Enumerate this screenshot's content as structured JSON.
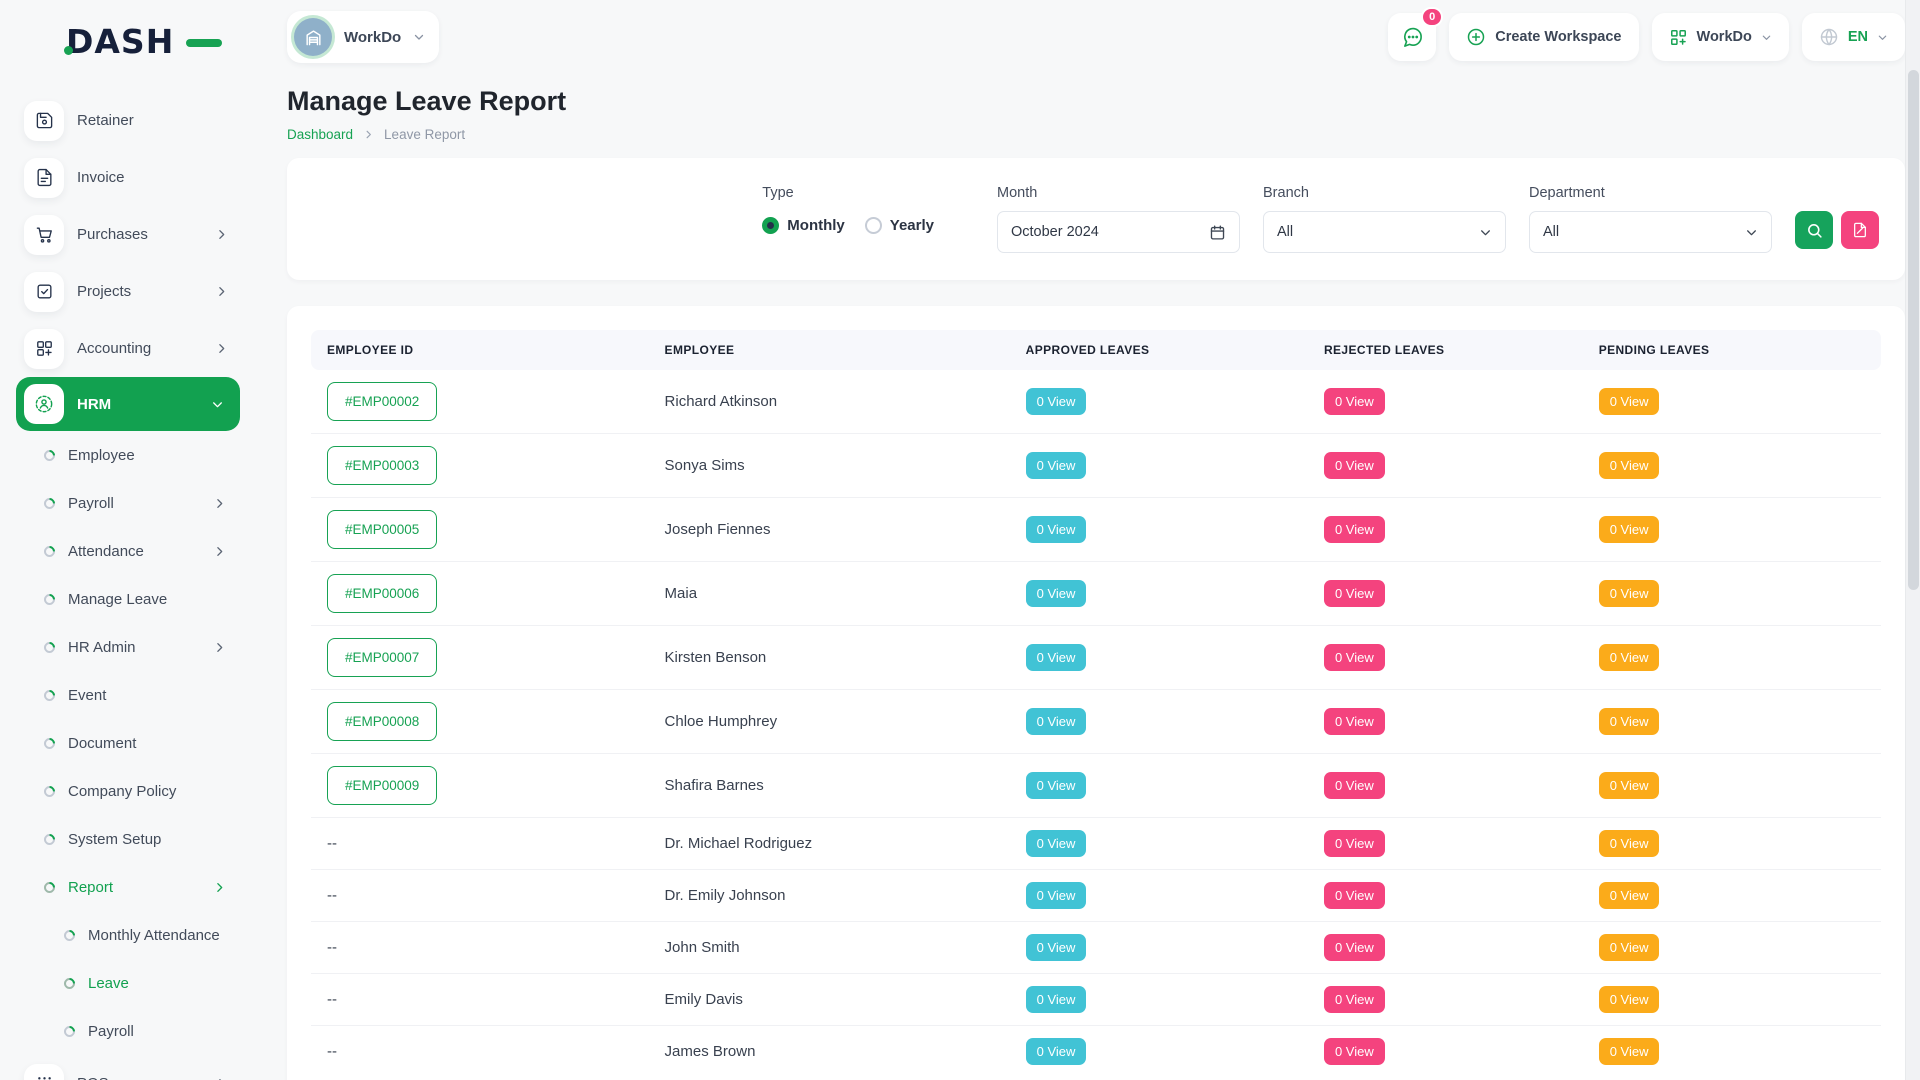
{
  "colors": {
    "accent_green": "#12a150",
    "badge_teal": "#41c3d5",
    "badge_pink": "#f4437e",
    "badge_orange": "#fbab1a",
    "brand_dark": "#16203a"
  },
  "brand": {
    "name": "DASH"
  },
  "topbar": {
    "workspace": {
      "label": "WorkDo"
    },
    "chat_badge": "0",
    "create_workspace_label": "Create Workspace",
    "app_menu_label": "WorkDo",
    "language_label": "EN"
  },
  "sidebar": {
    "items": [
      {
        "label": "Retainer",
        "icon": "retainer-icon",
        "chevron": false,
        "active": false
      },
      {
        "label": "Invoice",
        "icon": "invoice-icon",
        "chevron": false,
        "active": false
      },
      {
        "label": "Purchases",
        "icon": "purchases-icon",
        "chevron": true,
        "active": false
      },
      {
        "label": "Projects",
        "icon": "projects-icon",
        "chevron": true,
        "active": false
      },
      {
        "label": "Accounting",
        "icon": "accounting-icon",
        "chevron": true,
        "active": false
      },
      {
        "label": "HRM",
        "icon": "hrm-icon",
        "chevron": true,
        "active": true
      }
    ],
    "hrm_children": [
      {
        "label": "Employee",
        "chevron": false,
        "active": false
      },
      {
        "label": "Payroll",
        "chevron": true,
        "active": false
      },
      {
        "label": "Attendance",
        "chevron": true,
        "active": false
      },
      {
        "label": "Manage Leave",
        "chevron": false,
        "active": false
      },
      {
        "label": "HR Admin",
        "chevron": true,
        "active": false
      },
      {
        "label": "Event",
        "chevron": false,
        "active": false
      },
      {
        "label": "Document",
        "chevron": false,
        "active": false
      },
      {
        "label": "Company Policy",
        "chevron": false,
        "active": false
      },
      {
        "label": "System Setup",
        "chevron": false,
        "active": false
      },
      {
        "label": "Report",
        "chevron": true,
        "active": true
      }
    ],
    "report_children": [
      {
        "label": "Monthly Attendance",
        "active": false
      },
      {
        "label": "Leave",
        "active": true
      },
      {
        "label": "Payroll",
        "active": false
      }
    ],
    "pos": {
      "label": "POS",
      "icon": "pos-icon",
      "chevron": true,
      "active": false
    }
  },
  "page": {
    "title": "Manage Leave Report",
    "breadcrumb": {
      "home": "Dashboard",
      "current": "Leave Report"
    }
  },
  "filters": {
    "type_label": "Type",
    "options": [
      {
        "label": "Monthly",
        "selected": true
      },
      {
        "label": "Yearly",
        "selected": false
      }
    ],
    "month_label": "Month",
    "month_value": "October 2024",
    "branch_label": "Branch",
    "branch_value": "All",
    "department_label": "Department",
    "department_value": "All"
  },
  "table": {
    "columns": [
      "EMPLOYEE ID",
      "EMPLOYEE",
      "APPROVED LEAVES",
      "REJECTED LEAVES",
      "PENDING LEAVES"
    ],
    "rows": [
      {
        "id": "#EMP00002",
        "name": "Richard Atkinson",
        "approved": "0 View",
        "rejected": "0 View",
        "pending": "0 View"
      },
      {
        "id": "#EMP00003",
        "name": "Sonya Sims",
        "approved": "0 View",
        "rejected": "0 View",
        "pending": "0 View"
      },
      {
        "id": "#EMP00005",
        "name": "Joseph Fiennes",
        "approved": "0 View",
        "rejected": "0 View",
        "pending": "0 View"
      },
      {
        "id": "#EMP00006",
        "name": "Maia",
        "approved": "0 View",
        "rejected": "0 View",
        "pending": "0 View"
      },
      {
        "id": "#EMP00007",
        "name": "Kirsten Benson",
        "approved": "0 View",
        "rejected": "0 View",
        "pending": "0 View"
      },
      {
        "id": "#EMP00008",
        "name": "Chloe Humphrey",
        "approved": "0 View",
        "rejected": "0 View",
        "pending": "0 View"
      },
      {
        "id": "#EMP00009",
        "name": "Shafira Barnes",
        "approved": "0 View",
        "rejected": "0 View",
        "pending": "0 View"
      },
      {
        "id": "--",
        "name": "Dr. Michael Rodriguez",
        "approved": "0 View",
        "rejected": "0 View",
        "pending": "0 View"
      },
      {
        "id": "--",
        "name": "Dr. Emily Johnson",
        "approved": "0 View",
        "rejected": "0 View",
        "pending": "0 View"
      },
      {
        "id": "--",
        "name": "John Smith",
        "approved": "0 View",
        "rejected": "0 View",
        "pending": "0 View"
      },
      {
        "id": "--",
        "name": "Emily Davis",
        "approved": "0 View",
        "rejected": "0 View",
        "pending": "0 View"
      },
      {
        "id": "--",
        "name": "James Brown",
        "approved": "0 View",
        "rejected": "0 View",
        "pending": "0 View"
      }
    ]
  }
}
